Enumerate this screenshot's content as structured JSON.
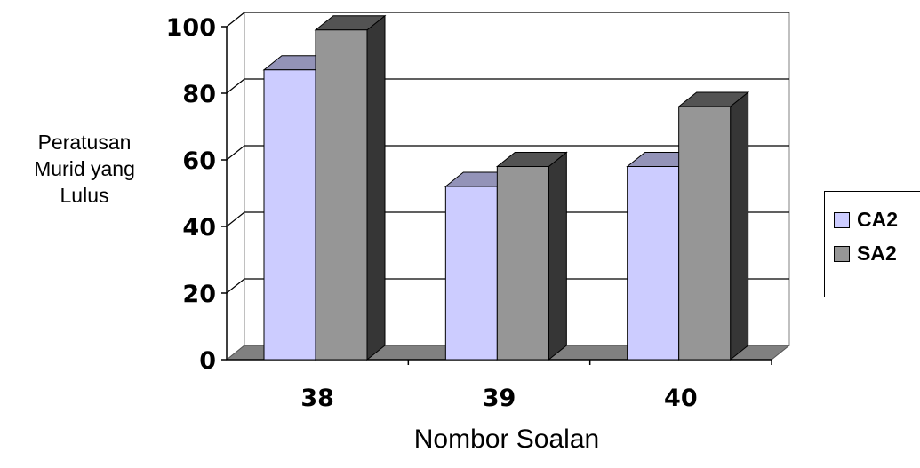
{
  "chart_data": {
    "type": "bar",
    "categories": [
      "38",
      "39",
      "40"
    ],
    "series": [
      {
        "name": "CA2",
        "values": [
          87,
          52,
          58
        ],
        "color": "#ccccff"
      },
      {
        "name": "SA2",
        "values": [
          99,
          58,
          76
        ],
        "color": "#969696"
      }
    ],
    "xlabel": "Nombor Soalan",
    "ylabel_lines": [
      "Peratusan",
      "Murid yang",
      "Lulus"
    ],
    "yticks": [
      "0",
      "20",
      "40",
      "60",
      "80",
      "100"
    ],
    "ylim": [
      0,
      100
    ],
    "grid": true,
    "legend_position": "right",
    "style": "3d-clustered-column"
  }
}
